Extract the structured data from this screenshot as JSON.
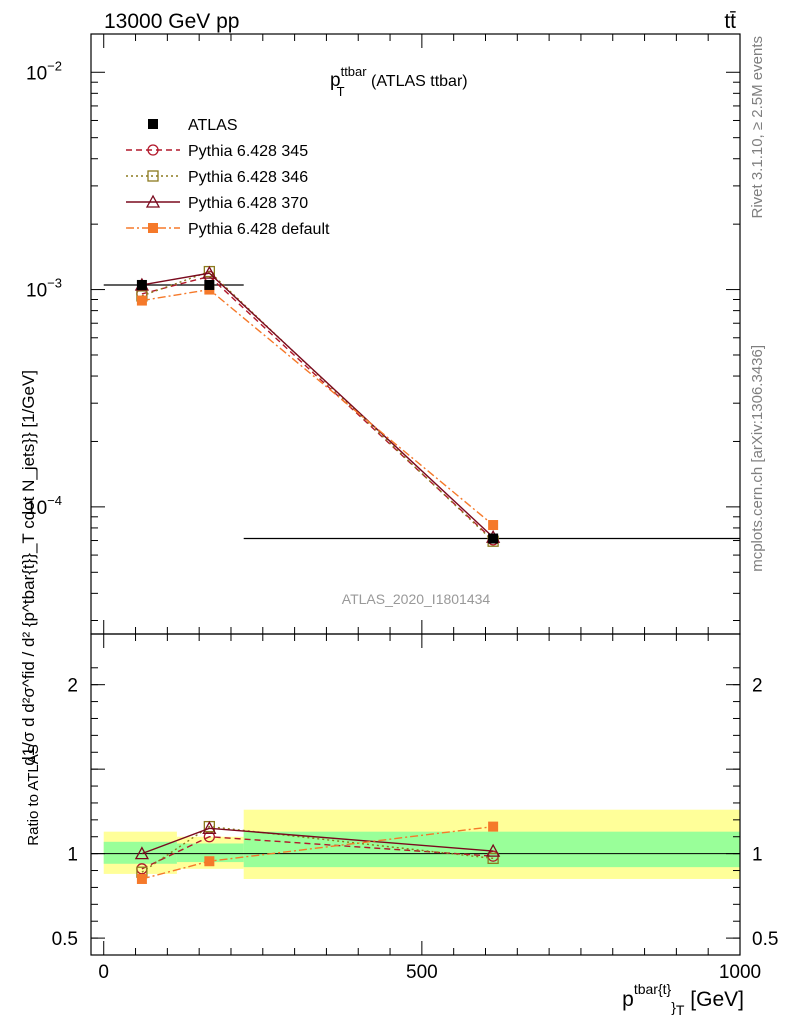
{
  "header": {
    "beam": "13000 GeV pp",
    "process": "tt̄"
  },
  "side_labels": {
    "rivet": "Rivet 3.1.10, ≥ 2.5M events",
    "mcplots": "mcplots.cern.ch [arXiv:1306.3436]"
  },
  "chart_data": [
    {
      "type": "line",
      "panel": "main",
      "title_main": "p",
      "title_sub": "T",
      "title_sup": "ttbar",
      "title_rest": " (ATLAS ttbar)",
      "ylabel": "d\\frac{1}{\\sigma}d\\frac{d^{2}\\sigma^{fid}}{d^{2} {p^{tbar{t}}}_{T} cdot N_{jets}}} [1/GeV]",
      "ylabel_display": "d1/σ d d²σ^fid / d² {p^tbar{t}}_T cdot N_jets}} [1/GeV]",
      "watermark": "ATLAS_2020_I1801434",
      "yscale": "log",
      "ylim": [
        2.6e-05,
        0.015
      ],
      "xlim": [
        -20,
        1000
      ],
      "ytick_labels": [
        {
          "base": "10",
          "exp": "−2",
          "value": 0.01
        },
        {
          "base": "10",
          "exp": "−3",
          "value": 0.001
        },
        {
          "base": "10",
          "exp": "−4",
          "value": 0.0001
        }
      ],
      "legend_position": "top-left",
      "series": [
        {
          "name": "ATLAS",
          "color": "#000000",
          "marker": "filled-square",
          "line": "none",
          "x": [
            60,
            166,
            612
          ],
          "y": [
            0.00105,
            0.00105,
            7.15e-05
          ],
          "xerr": [
            [
              0,
              115
            ],
            [
              115,
              220
            ],
            [
              220,
              1000
            ]
          ]
        },
        {
          "name": "Pythia 6.428 345",
          "color": "#b2182b",
          "marker": "open-circle",
          "line": "dashed",
          "x": [
            60,
            166,
            612
          ],
          "y": [
            0.000955,
            0.00115,
            7.05e-05
          ]
        },
        {
          "name": "Pythia 6.428 346",
          "color": "#8c7a1e",
          "marker": "open-square",
          "line": "dotted",
          "x": [
            60,
            166,
            612
          ],
          "y": [
            0.000935,
            0.00121,
            6.95e-05
          ]
        },
        {
          "name": "Pythia 6.428 370",
          "color": "#7a0a1e",
          "marker": "open-triangle",
          "line": "solid",
          "x": [
            60,
            166,
            612
          ],
          "y": [
            0.00105,
            0.00119,
            7.25e-05
          ]
        },
        {
          "name": "Pythia 6.428 default",
          "color": "#f5792a",
          "marker": "filled-square",
          "line": "dashdot",
          "x": [
            60,
            166,
            612
          ],
          "y": [
            0.00089,
            0.001,
            8.25e-05
          ]
        }
      ]
    },
    {
      "type": "line",
      "panel": "ratio",
      "ylabel": "Ratio to ATLAS",
      "xlabel_main": "p",
      "xlabel_sup": "tbar{t}",
      "xlabel_sub": "}",
      "xlabel_sub2": "T",
      "xlabel_rest": " [GeV]",
      "ylim": [
        0.4,
        2.3
      ],
      "xlim": [
        -20,
        1000
      ],
      "xtick_labels": [
        "0",
        "500",
        "1000"
      ],
      "ytick_labels": [
        "0.5",
        "1",
        "2"
      ],
      "bands": [
        {
          "x0": 0,
          "x1": 115,
          "inner": [
            0.94,
            1.07
          ],
          "outer": [
            0.88,
            1.13
          ]
        },
        {
          "x0": 115,
          "x1": 220,
          "inner": [
            0.95,
            1.06
          ],
          "outer": [
            0.91,
            1.1
          ]
        },
        {
          "x0": 220,
          "x1": 1000,
          "inner": [
            0.92,
            1.13
          ],
          "outer": [
            0.85,
            1.26
          ]
        }
      ],
      "series": [
        {
          "name": "Pythia 6.428 345",
          "x": [
            60,
            166,
            612
          ],
          "y": [
            0.91,
            1.1,
            0.985
          ]
        },
        {
          "name": "Pythia 6.428 346",
          "x": [
            60,
            166,
            612
          ],
          "y": [
            0.89,
            1.16,
            0.972
          ]
        },
        {
          "name": "Pythia 6.428 370",
          "x": [
            60,
            166,
            612
          ],
          "y": [
            1.0,
            1.15,
            1.015
          ]
        },
        {
          "name": "Pythia 6.428 default",
          "x": [
            60,
            166,
            612
          ],
          "y": [
            0.85,
            0.955,
            1.16
          ]
        }
      ]
    }
  ]
}
